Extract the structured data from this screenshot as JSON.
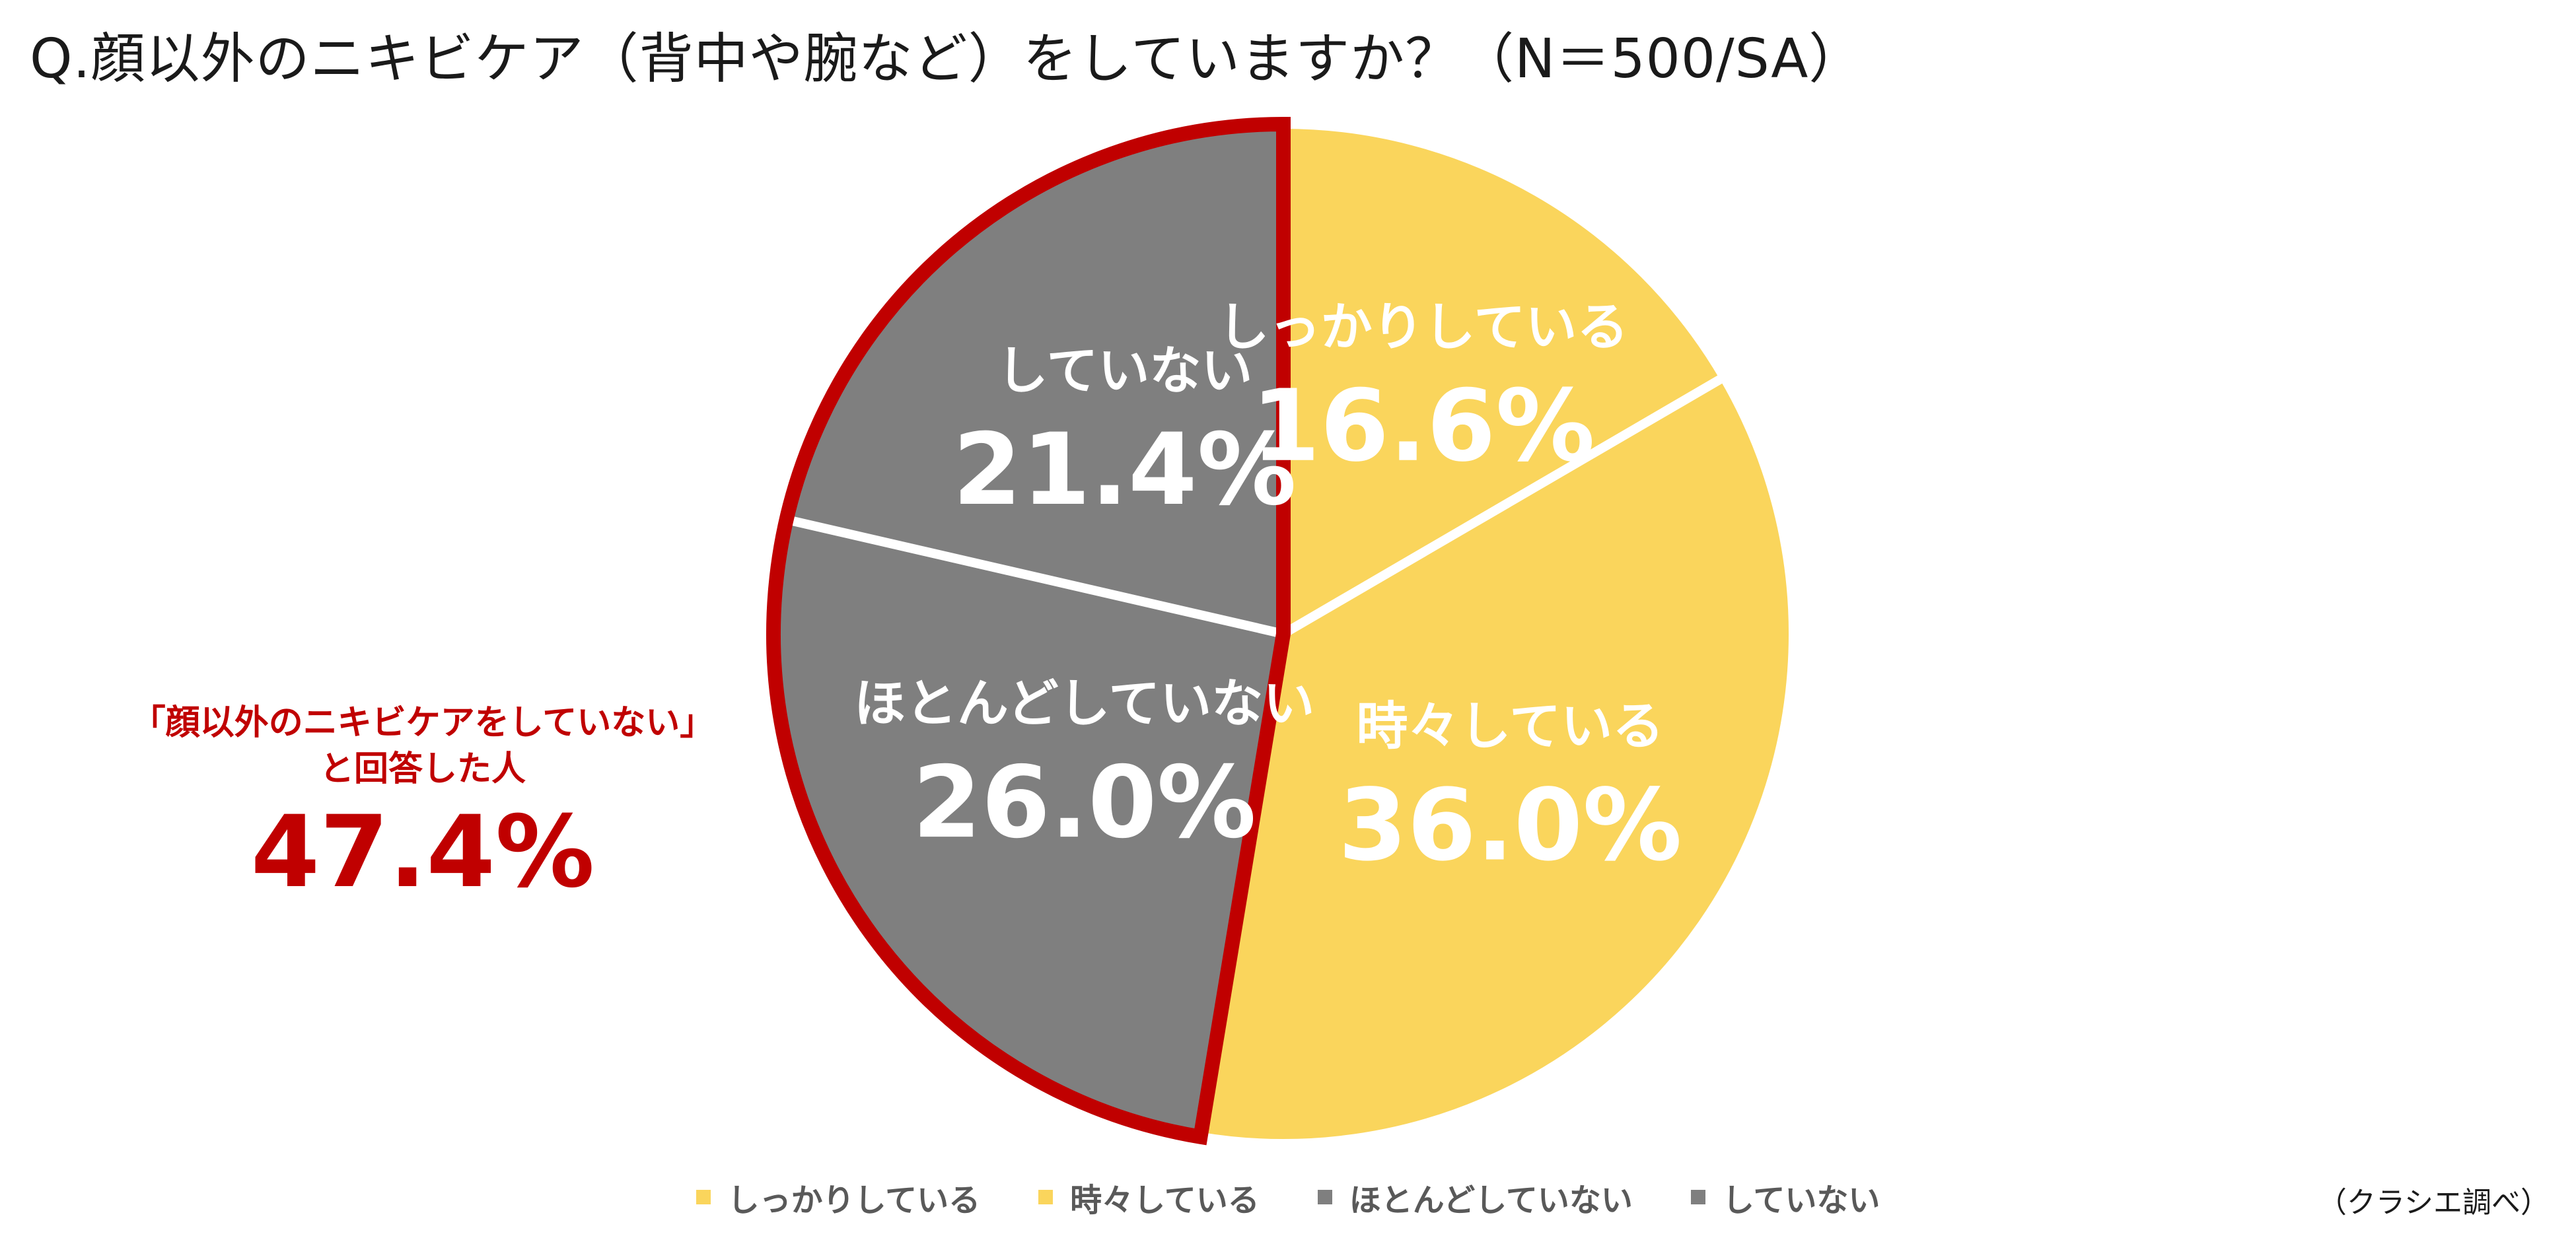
{
  "title": "Q.顔以外のニキビケア（背中や腕など）をしていますか？（N＝500/SA）",
  "source_note": "（クラシエ調べ）",
  "callout": {
    "line1": "「顔以外のニキビケアをしていない」",
    "line2": "と回答した人",
    "value": "47.4%",
    "color": "#c00000"
  },
  "chart_data": {
    "type": "pie",
    "title": "Q.顔以外のニキビケア（背中や腕など）をしていますか？（N＝500/SA）",
    "start_angle": "12 o'clock",
    "direction": "clockwise",
    "categories": [
      "しっかりしている",
      "時々している",
      "ほとんどしていない",
      "していない"
    ],
    "values": [
      16.6,
      36.0,
      26.0,
      21.4
    ],
    "value_labels": [
      "16.6%",
      "36.0%",
      "26.0%",
      "21.4%"
    ],
    "colors": [
      "#fad55c",
      "#fad55c",
      "#7f7f7f",
      "#7f7f7f"
    ],
    "highlight": {
      "categories": [
        "ほとんどしていない",
        "していない"
      ],
      "outline_color": "#c00000",
      "total": 47.4
    },
    "legend_position": "bottom"
  }
}
